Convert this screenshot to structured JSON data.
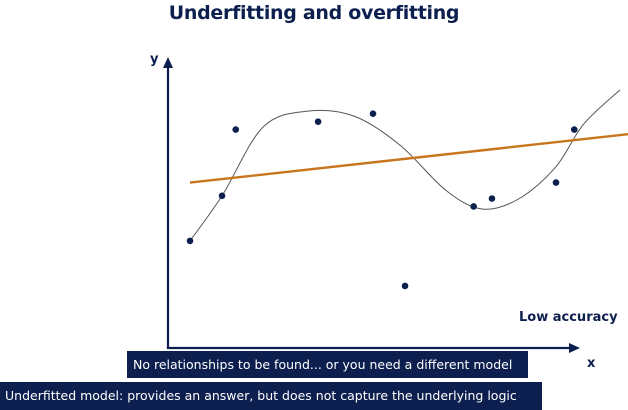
{
  "title": "Underfitting and overfitting",
  "axis": {
    "x_label": "x",
    "y_label": "y"
  },
  "accuracy_label": "Low accuracy",
  "banners": {
    "line1": "No relationships to be found... or you need a different model",
    "line2": "Underfitted model: provides an answer, but does not capture the underlying logic"
  },
  "colors": {
    "text": "#0d1f4f",
    "points": "#0d1f4f",
    "linear_fit": "#c8761e",
    "overfit_curve": "#555555",
    "banner_bg": "#0d1f4f"
  },
  "chart_data": {
    "type": "scatter",
    "axis_ticks": "none",
    "grid": false,
    "points": [
      {
        "x": 1.0,
        "y": 3.4
      },
      {
        "x": 1.35,
        "y": 5.1
      },
      {
        "x": 1.5,
        "y": 7.6
      },
      {
        "x": 2.4,
        "y": 7.9
      },
      {
        "x": 3.0,
        "y": 8.2
      },
      {
        "x": 3.35,
        "y": 1.7
      },
      {
        "x": 4.1,
        "y": 4.7
      },
      {
        "x": 4.3,
        "y": 5.0
      },
      {
        "x": 5.0,
        "y": 5.6
      },
      {
        "x": 5.2,
        "y": 7.6
      }
    ],
    "linear_fit": {
      "x0": 1.0,
      "y0": 5.6,
      "x1": 5.85,
      "y1": 7.45
    },
    "overfit_curve": [
      [
        1.0,
        3.4
      ],
      [
        1.35,
        5.1
      ],
      [
        1.8,
        7.7
      ],
      [
        2.3,
        8.3
      ],
      [
        2.8,
        8.1
      ],
      [
        3.3,
        7.0
      ],
      [
        3.8,
        5.3
      ],
      [
        4.2,
        4.6
      ],
      [
        4.6,
        5.0
      ],
      [
        5.0,
        6.2
      ],
      [
        5.3,
        7.8
      ],
      [
        5.7,
        9.1
      ]
    ]
  }
}
